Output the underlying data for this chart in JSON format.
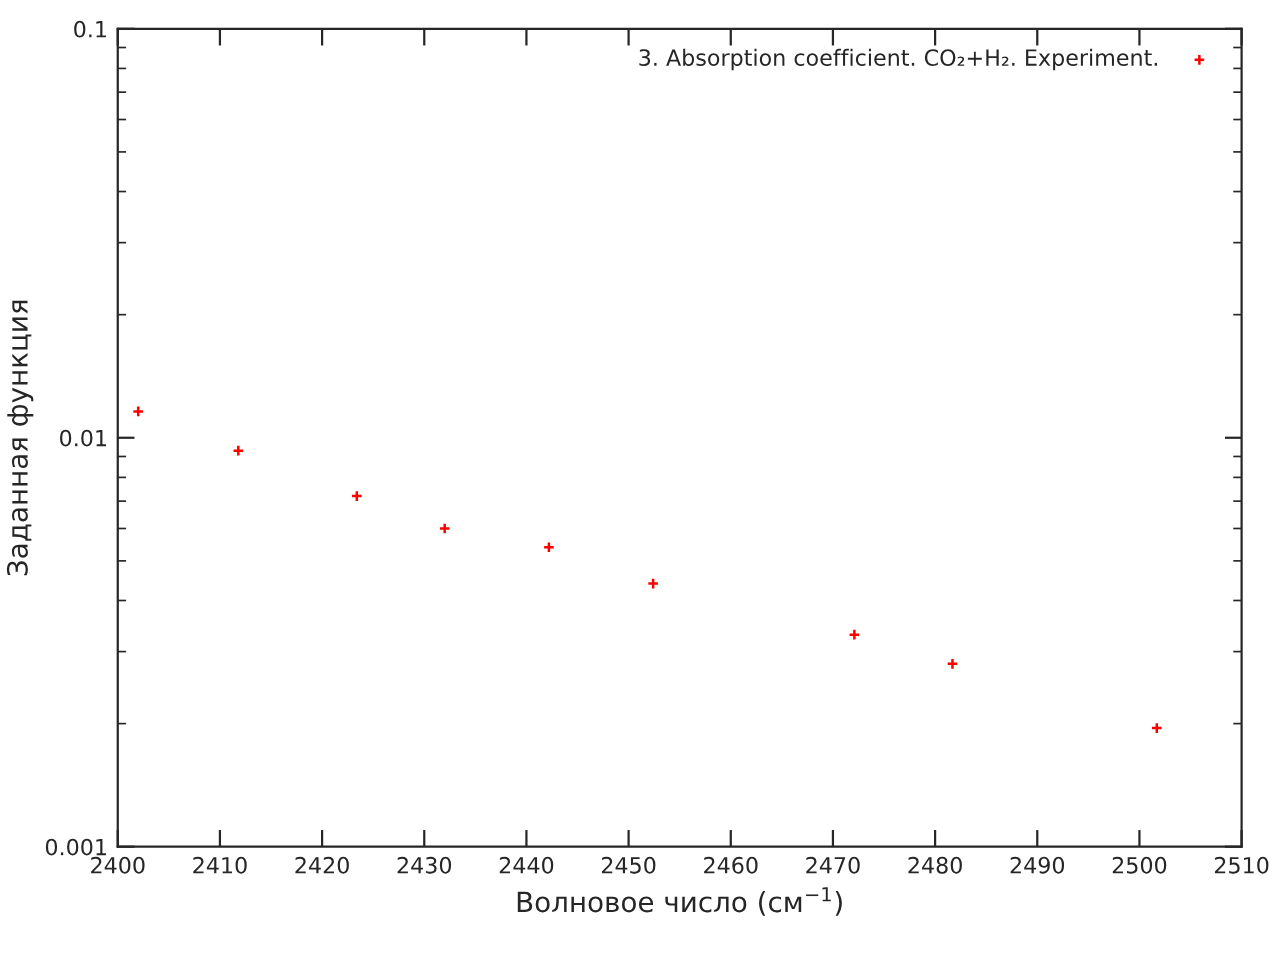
{
  "chart_data": {
    "type": "scatter",
    "xlabel": "Волновое число (см$^{−1}$)",
    "ylabel": "Заданная функция",
    "x": [
      2402.0,
      2411.8,
      2423.4,
      2432.0,
      2442.2,
      2452.4,
      2472.1,
      2481.7,
      2501.7
    ],
    "series": [
      {
        "name": "3. Absorption coefficient. CO₂+H₂. Experiment.",
        "color": "#ff0000",
        "values": [
          0.0116,
          0.0093,
          0.0072,
          0.006,
          0.0054,
          0.0044,
          0.0033,
          0.0028,
          0.00195
        ]
      }
    ],
    "xlim": [
      2400,
      2510
    ],
    "xticks": [
      2400,
      2410,
      2420,
      2430,
      2440,
      2450,
      2460,
      2470,
      2480,
      2490,
      2500,
      2510
    ],
    "ylim": [
      0.001,
      0.1
    ],
    "yticks": [
      0.001,
      0.01,
      0.1
    ],
    "log": "y",
    "marker": "cross",
    "grid": false,
    "legend": "top right"
  }
}
